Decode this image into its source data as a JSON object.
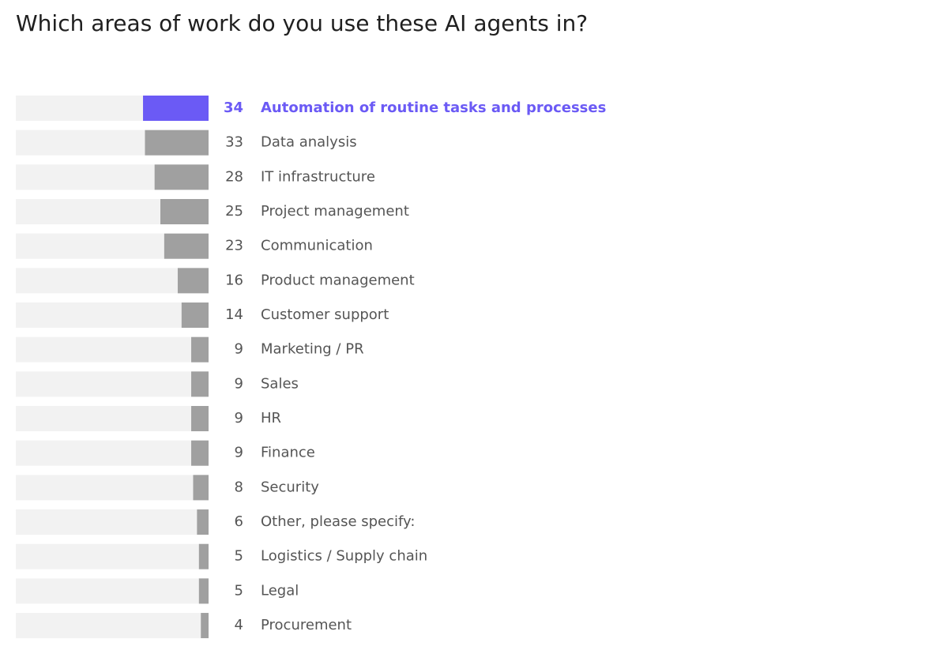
{
  "chart_data": {
    "type": "bar",
    "orientation": "horizontal",
    "title": "Which areas of work do you use these AI agents in?",
    "categories": [
      "Automation of routine tasks and processes",
      "Data analysis",
      "IT infrastructure",
      "Project management",
      "Communication",
      "Product management",
      "Customer support",
      "Marketing / PR",
      "Sales",
      "HR",
      "Finance",
      "Security",
      "Other, please specify:",
      "Logistics / Supply chain",
      "Legal",
      "Procurement"
    ],
    "values": [
      34,
      33,
      28,
      25,
      23,
      16,
      14,
      9,
      9,
      9,
      9,
      8,
      6,
      5,
      5,
      4
    ],
    "xlim": [
      0,
      100
    ],
    "color": "#a0a0a0",
    "track_color": "#f2f2f2",
    "highlight": {
      "index": 0,
      "color": "#6b5af5"
    }
  }
}
